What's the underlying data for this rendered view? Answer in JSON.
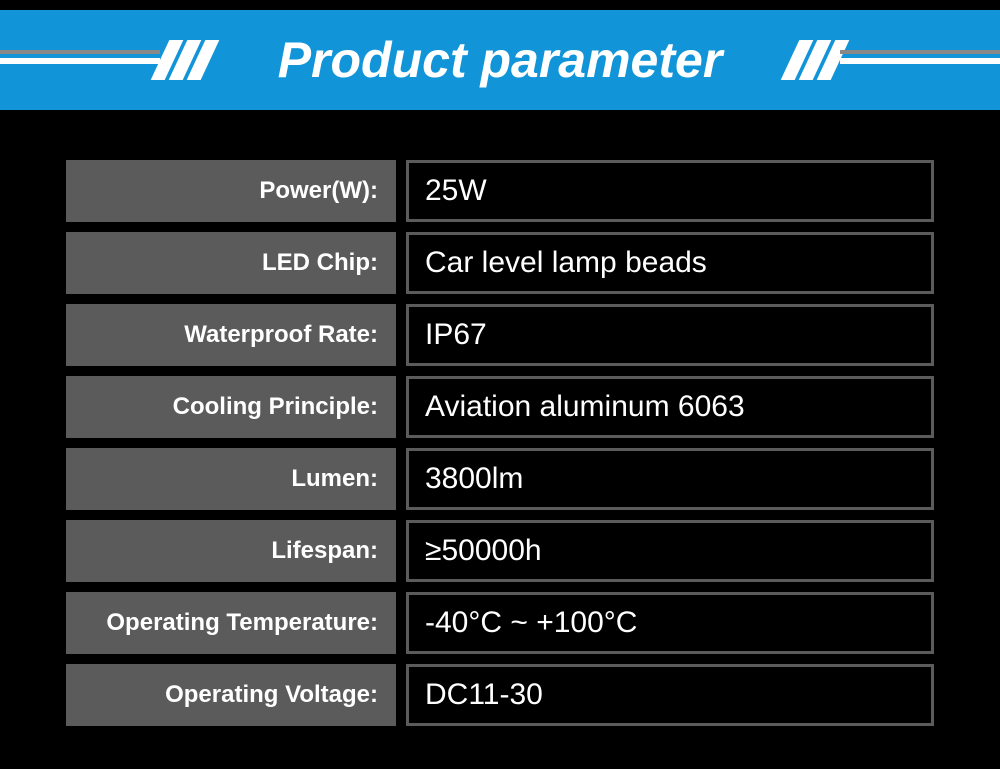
{
  "header": {
    "title": "Product parameter"
  },
  "colors": {
    "header_bg": "#1295d8",
    "header_text": "#ffffff",
    "page_bg": "#000000",
    "label_bg": "#5b5b5b",
    "label_text": "#ffffff",
    "value_border": "#5b5b5b",
    "value_text": "#ffffff"
  },
  "rows": [
    {
      "label": "Power(W):",
      "value": "25W"
    },
    {
      "label": "LED Chip:",
      "value": "Car level lamp beads"
    },
    {
      "label": "Waterproof Rate:",
      "value": "IP67"
    },
    {
      "label": "Cooling Principle:",
      "value": "Aviation aluminum 6063"
    },
    {
      "label": "Lumen:",
      "value": "3800lm"
    },
    {
      "label": "Lifespan:",
      "value": "≥50000h"
    },
    {
      "label": "Operating Temperature:",
      "value": "-40°C ~ +100°C"
    },
    {
      "label": "Operating Voltage:",
      "value": "DC11-30"
    }
  ]
}
